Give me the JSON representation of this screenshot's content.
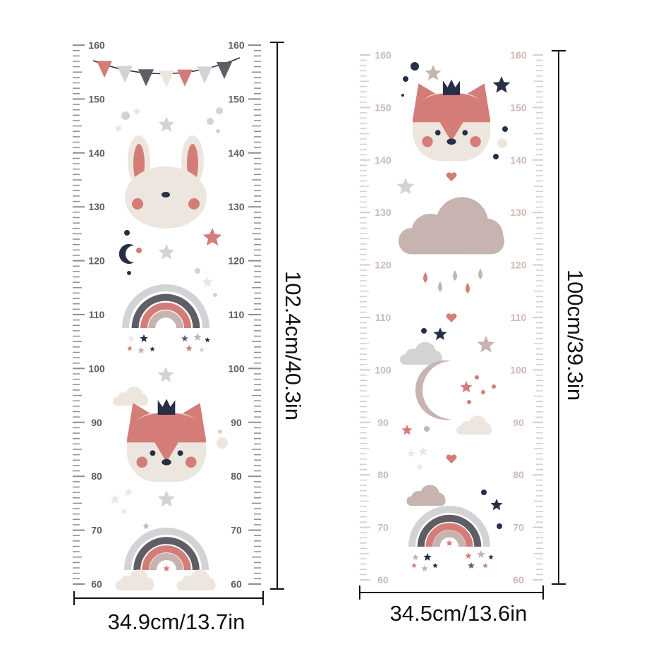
{
  "charts": [
    {
      "name": "left",
      "range_cm": [
        60,
        160
      ],
      "label_step": 10,
      "tick_color": "#8e8d94",
      "label_color": "#5f5e66",
      "height_dim": "102.4cm/40.3in",
      "width_dim": "34.9cm/13.7in",
      "illustrations": [
        "bunting-icon",
        "bunny-icon",
        "moon-icon",
        "rainbow-icon",
        "fox-icon",
        "rainbow-icon",
        "cloud-icon"
      ]
    },
    {
      "name": "right",
      "range_cm": [
        60,
        160
      ],
      "label_step": 10,
      "tick_color": "#dccbc7",
      "label_color": "#cdbab5",
      "height_dim": "100cm/39.3in",
      "width_dim": "34.5cm/13.6in",
      "illustrations": [
        "fox-icon",
        "heart-icon",
        "rain-cloud-icon",
        "moon-icon",
        "cloud-icon",
        "rainbow-icon"
      ]
    }
  ],
  "colors": {
    "pink": "#d47d78",
    "beige": "#ede6df",
    "navy": "#262f45",
    "gray": "#d3d3d5",
    "dark": "#5f5e66",
    "taupe": "#c7b3b0"
  }
}
